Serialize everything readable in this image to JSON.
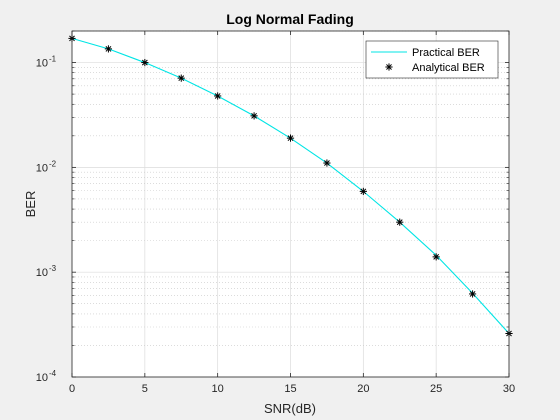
{
  "chart_data": {
    "type": "line",
    "title": "Log Normal Fading",
    "xlabel": "SNR(dB)",
    "ylabel": "BER",
    "xlim": [
      0,
      30
    ],
    "ylim": [
      0.0001,
      0.2
    ],
    "yscale": "log",
    "grid": true,
    "minor_grid": true,
    "legend_position": "top-right",
    "x_ticks": [
      "0",
      "5",
      "10",
      "15",
      "20",
      "25",
      "30"
    ],
    "y_ticks": [
      {
        "base": "10",
        "exp": "-4"
      },
      {
        "base": "10",
        "exp": "-3"
      },
      {
        "base": "10",
        "exp": "-2"
      },
      {
        "base": "10",
        "exp": "-1"
      }
    ],
    "series": [
      {
        "name": "Practical BER",
        "style": "line",
        "color": "#00e5e5",
        "x": [
          0,
          2.5,
          5,
          7.5,
          10,
          12.5,
          15,
          17.5,
          20,
          22.5,
          25,
          27.5,
          30
        ],
        "y": [
          0.17,
          0.135,
          0.1,
          0.071,
          0.048,
          0.031,
          0.019,
          0.011,
          0.0059,
          0.003,
          0.00145,
          0.00063,
          0.00026
        ]
      },
      {
        "name": "Analytical BER",
        "style": "marker",
        "marker": "*",
        "color": "#000000",
        "x": [
          0,
          2.5,
          5,
          7.5,
          10,
          12.5,
          15,
          17.5,
          20,
          22.5,
          25,
          27.5,
          30
        ],
        "y": [
          0.17,
          0.135,
          0.1,
          0.071,
          0.048,
          0.031,
          0.019,
          0.011,
          0.0059,
          0.003,
          0.0014,
          0.00062,
          0.00026
        ]
      }
    ]
  }
}
